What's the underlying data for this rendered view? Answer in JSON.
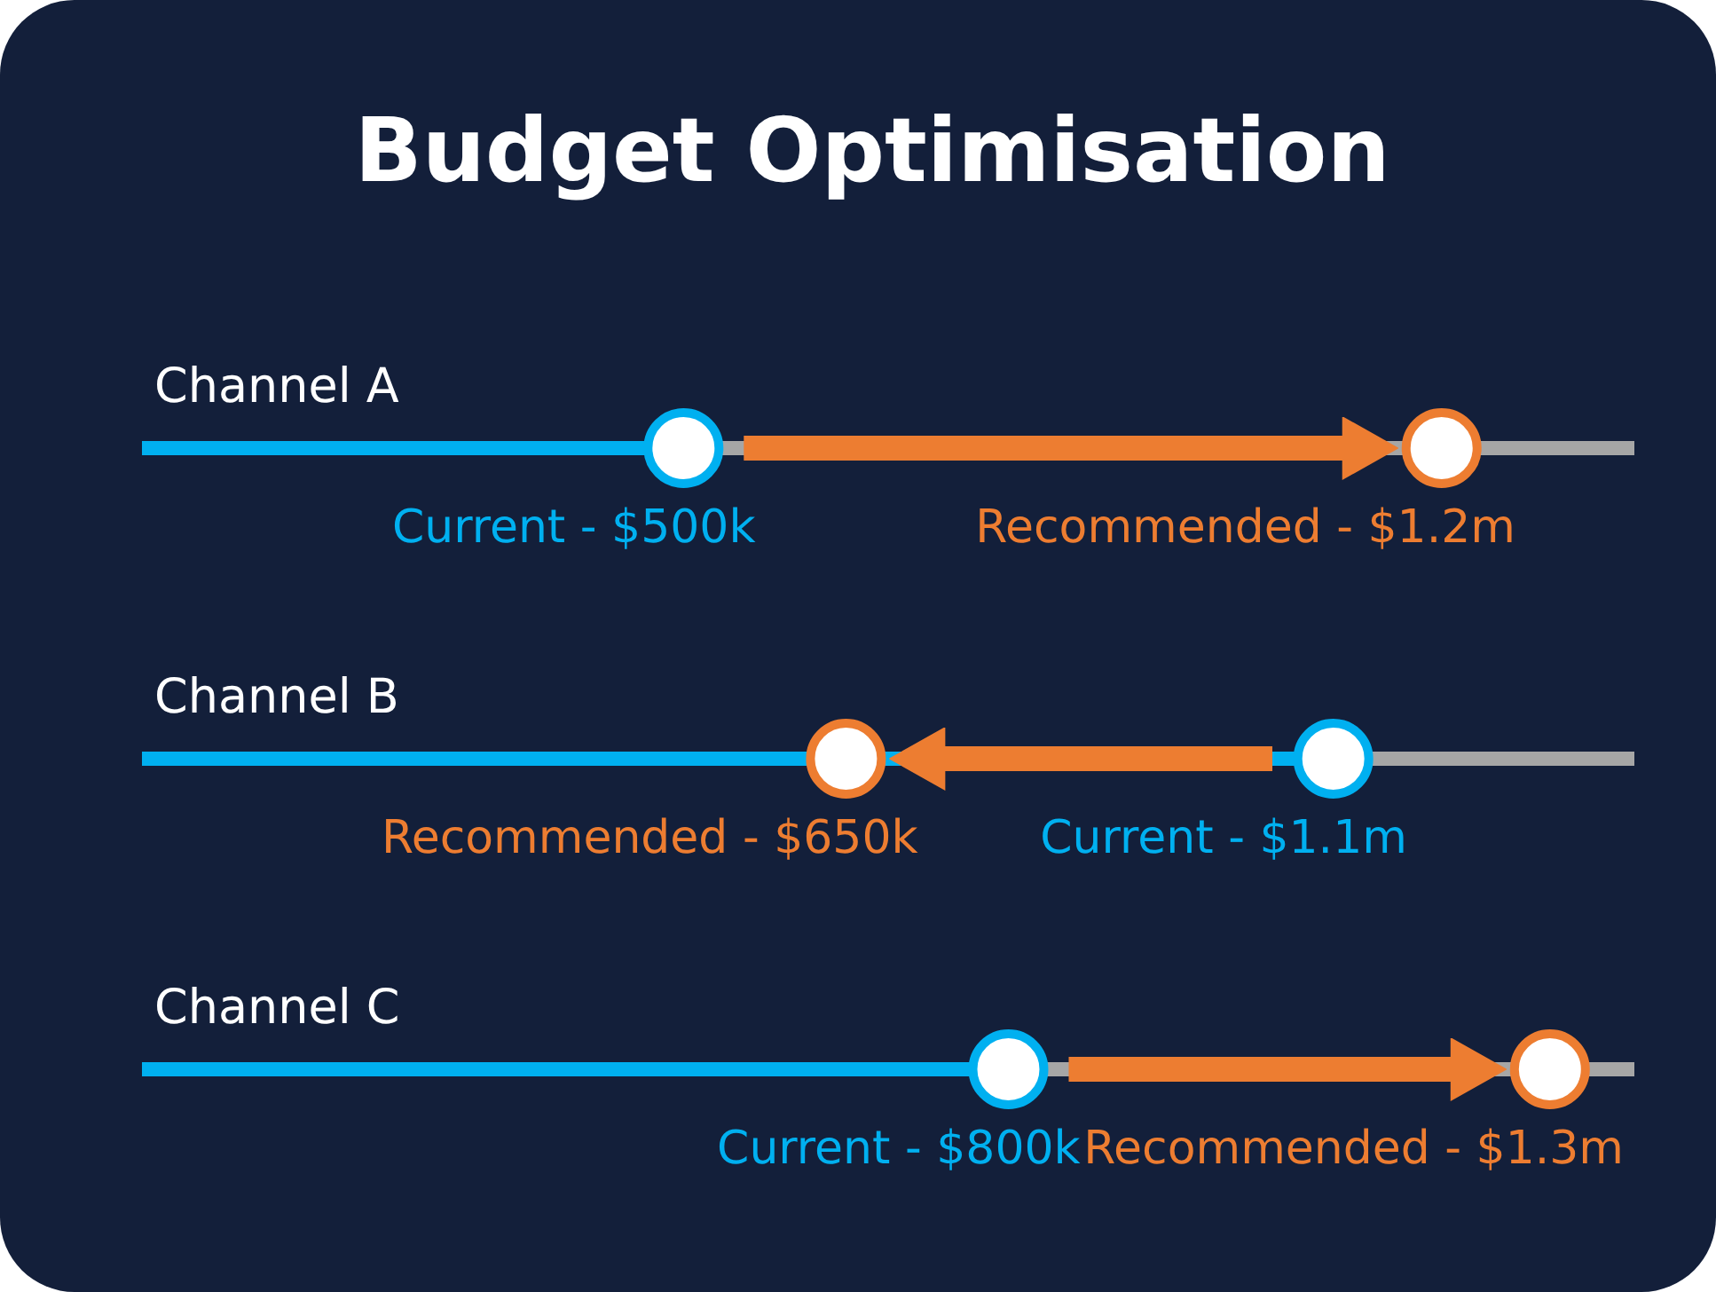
{
  "chart_data": {
    "type": "lollipop",
    "title": "Budget Optimisation",
    "orientation": "horizontal",
    "categories": [
      "Channel A",
      "Channel B",
      "Channel C"
    ],
    "marker": "circle",
    "series": [
      {
        "name": "Current -",
        "color": "#00b0f0",
        "values": [
          500000,
          1100000,
          800000
        ],
        "value_labels": [
          "$500k",
          "$1.1m",
          "$800k"
        ]
      },
      {
        "name": "Recommended -",
        "type": "scatter",
        "color": "#ed7d31",
        "values": [
          1200000,
          650000,
          1300000
        ],
        "value_labels": [
          "$1.2m",
          "$650k",
          "$1.3m"
        ]
      }
    ]
  }
}
